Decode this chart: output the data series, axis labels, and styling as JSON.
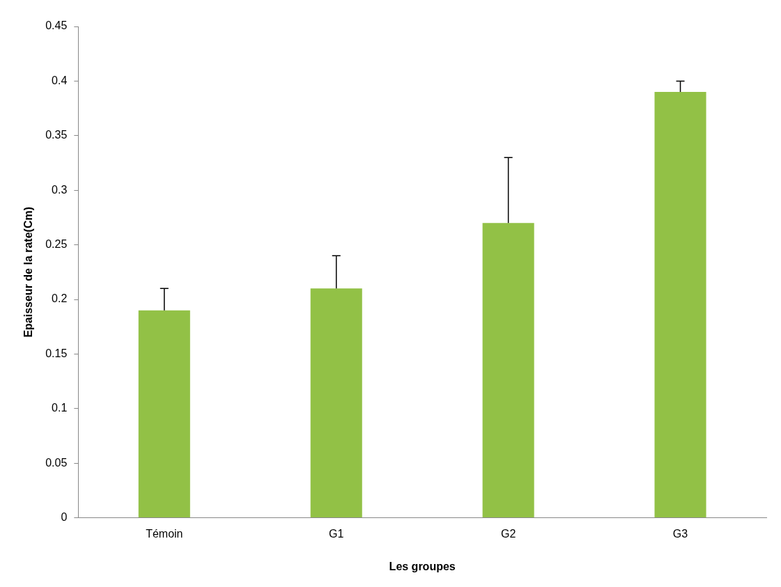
{
  "chart_data": {
    "type": "bar",
    "xlabel": "Les groupes",
    "ylabel": "Epaisseur de la rate(Cm)",
    "categories": [
      "Témoin",
      "G1",
      "G2",
      "G3"
    ],
    "values": [
      0.19,
      0.21,
      0.27,
      0.39
    ],
    "errors": [
      [
        0.19,
        0.21
      ],
      [
        0.21,
        0.24
      ],
      [
        0.27,
        0.33
      ],
      [
        0.39,
        0.4
      ]
    ],
    "color": "#92c146",
    "ylim": [
      0,
      0.45
    ],
    "yticks": [
      0,
      0.05,
      0.1,
      0.15,
      0.2,
      0.25,
      0.3,
      0.35,
      0.4,
      0.45
    ],
    "grid": false,
    "legend": false
  }
}
